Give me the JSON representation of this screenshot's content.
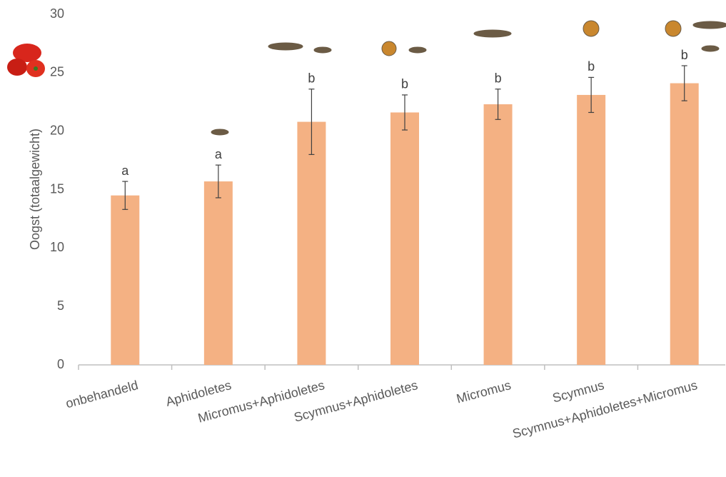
{
  "chart_data": {
    "type": "bar",
    "ylabel": "Oogst (totaalgewicht)",
    "categories": [
      "onbehandeld",
      "Aphidoletes",
      "Micromus+Aphidoletes",
      "Scymnus+Aphidoletes",
      "Micromus",
      "Scymnus",
      "Scymnus+Aphidoletes+Micromus"
    ],
    "values": [
      14.5,
      15.7,
      20.8,
      21.6,
      22.3,
      23.1,
      24.1
    ],
    "errors": [
      1.2,
      1.4,
      2.8,
      1.5,
      1.3,
      1.5,
      1.5
    ],
    "letters": [
      "a",
      "a",
      "b",
      "b",
      "b",
      "b",
      "b"
    ],
    "color": "#f4b183",
    "ylim": [
      0,
      30
    ],
    "yticks": [
      0,
      5,
      10,
      15,
      20,
      25,
      30
    ],
    "grid": false
  }
}
